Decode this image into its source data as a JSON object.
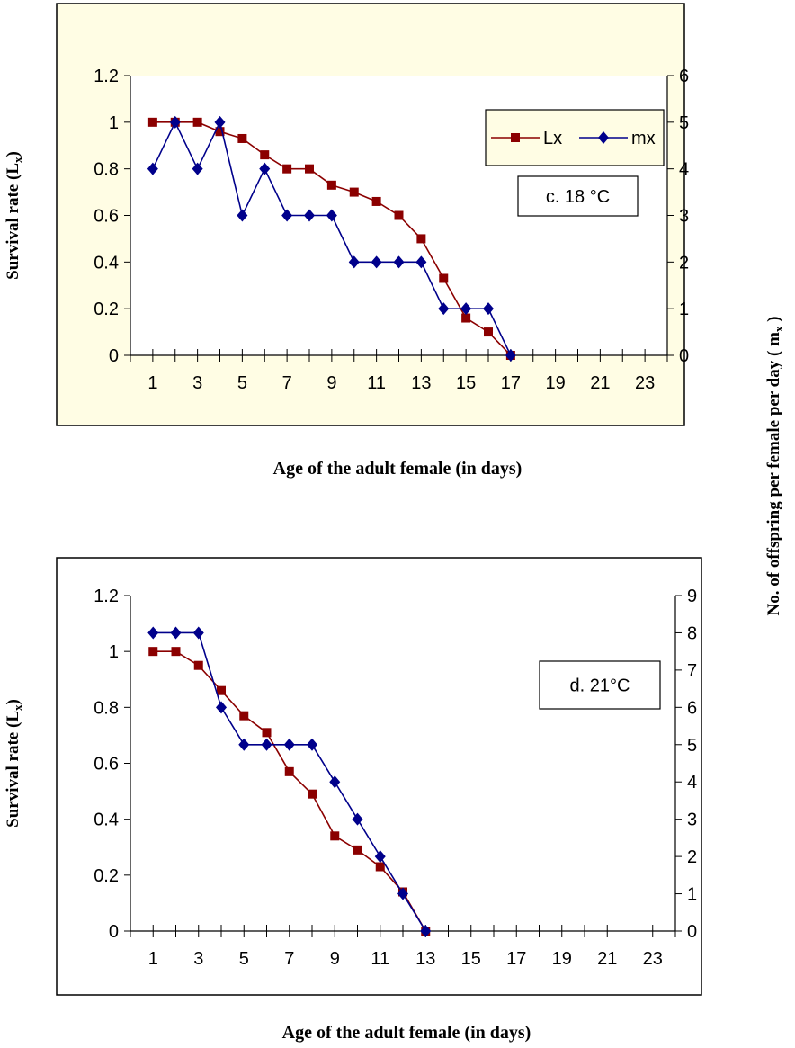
{
  "right_axis_label": "No. of offspring per female per day ( m",
  "right_axis_label_sub": "x",
  "right_axis_label_end": " )",
  "chart_data": [
    {
      "type": "line",
      "annotation": "c. 18 °C",
      "xlabel": "Age of the adult female (in days)",
      "ylabel": "Survival rate (L",
      "ylabel_sub": "x",
      "ylabel_end": ")",
      "x_ticks": [
        "1",
        "3",
        "5",
        "7",
        "9",
        "11",
        "13",
        "15",
        "17",
        "19",
        "21",
        "23"
      ],
      "xlim": [
        0,
        24
      ],
      "ylim_left": [
        0,
        1.2
      ],
      "yticks_left": [
        "0",
        "0.2",
        "0.4",
        "0.6",
        "0.8",
        "1",
        "1.2"
      ],
      "ylim_right": [
        0,
        6
      ],
      "yticks_right": [
        "0",
        "1",
        "2",
        "3",
        "4",
        "5",
        "6"
      ],
      "legend_position": "top-right",
      "plot_bg": "#ffffff",
      "frame_bg": "#fffde4",
      "series": [
        {
          "name": "Lx",
          "axis": "left",
          "color": "#8b0000",
          "marker": "square",
          "x": [
            1,
            2,
            3,
            4,
            5,
            6,
            7,
            8,
            9,
            10,
            11,
            12,
            13,
            14,
            15,
            16,
            17
          ],
          "y": [
            1.0,
            1.0,
            1.0,
            0.96,
            0.93,
            0.86,
            0.8,
            0.8,
            0.73,
            0.7,
            0.66,
            0.6,
            0.5,
            0.33,
            0.16,
            0.1,
            0.0
          ]
        },
        {
          "name": "mx",
          "axis": "right",
          "color": "#00008b",
          "marker": "diamond",
          "x": [
            1,
            2,
            3,
            4,
            5,
            6,
            7,
            8,
            9,
            10,
            11,
            12,
            13,
            14,
            15,
            16,
            17
          ],
          "y": [
            4,
            5,
            4,
            5,
            3,
            4,
            3,
            3,
            3,
            2,
            2,
            2,
            2,
            1,
            1,
            1,
            0
          ]
        }
      ]
    },
    {
      "type": "line",
      "annotation": "d. 21°C",
      "xlabel": "Age of the adult female (in days)",
      "ylabel": "Survival rate (L",
      "ylabel_sub": "x",
      "ylabel_end": ")",
      "x_ticks": [
        "1",
        "3",
        "5",
        "7",
        "9",
        "11",
        "13",
        "15",
        "17",
        "19",
        "21",
        "23"
      ],
      "xlim": [
        0,
        24
      ],
      "ylim_left": [
        0,
        1.2
      ],
      "yticks_left": [
        "0",
        "0.2",
        "0.4",
        "0.6",
        "0.8",
        "1",
        "1.2"
      ],
      "ylim_right": [
        0,
        9
      ],
      "yticks_right": [
        "0",
        "1",
        "2",
        "3",
        "4",
        "5",
        "6",
        "7",
        "8",
        "9"
      ],
      "plot_bg": "#ffffff",
      "frame_bg": "#ffffff",
      "series": [
        {
          "axis": "left",
          "color": "#8b0000",
          "marker": "square",
          "x": [
            1,
            2,
            3,
            4,
            5,
            6,
            7,
            8,
            9,
            10,
            11,
            12,
            13
          ],
          "y": [
            1.0,
            1.0,
            0.95,
            0.86,
            0.77,
            0.71,
            0.57,
            0.49,
            0.34,
            0.29,
            0.23,
            0.14,
            0.0
          ]
        },
        {
          "axis": "right",
          "color": "#00008b",
          "marker": "diamond",
          "x": [
            1,
            2,
            3,
            4,
            5,
            6,
            7,
            8,
            9,
            10,
            11,
            12,
            13
          ],
          "y": [
            8,
            8,
            8,
            6,
            5,
            5,
            5,
            5,
            4,
            3,
            2,
            1,
            0
          ]
        }
      ]
    }
  ]
}
